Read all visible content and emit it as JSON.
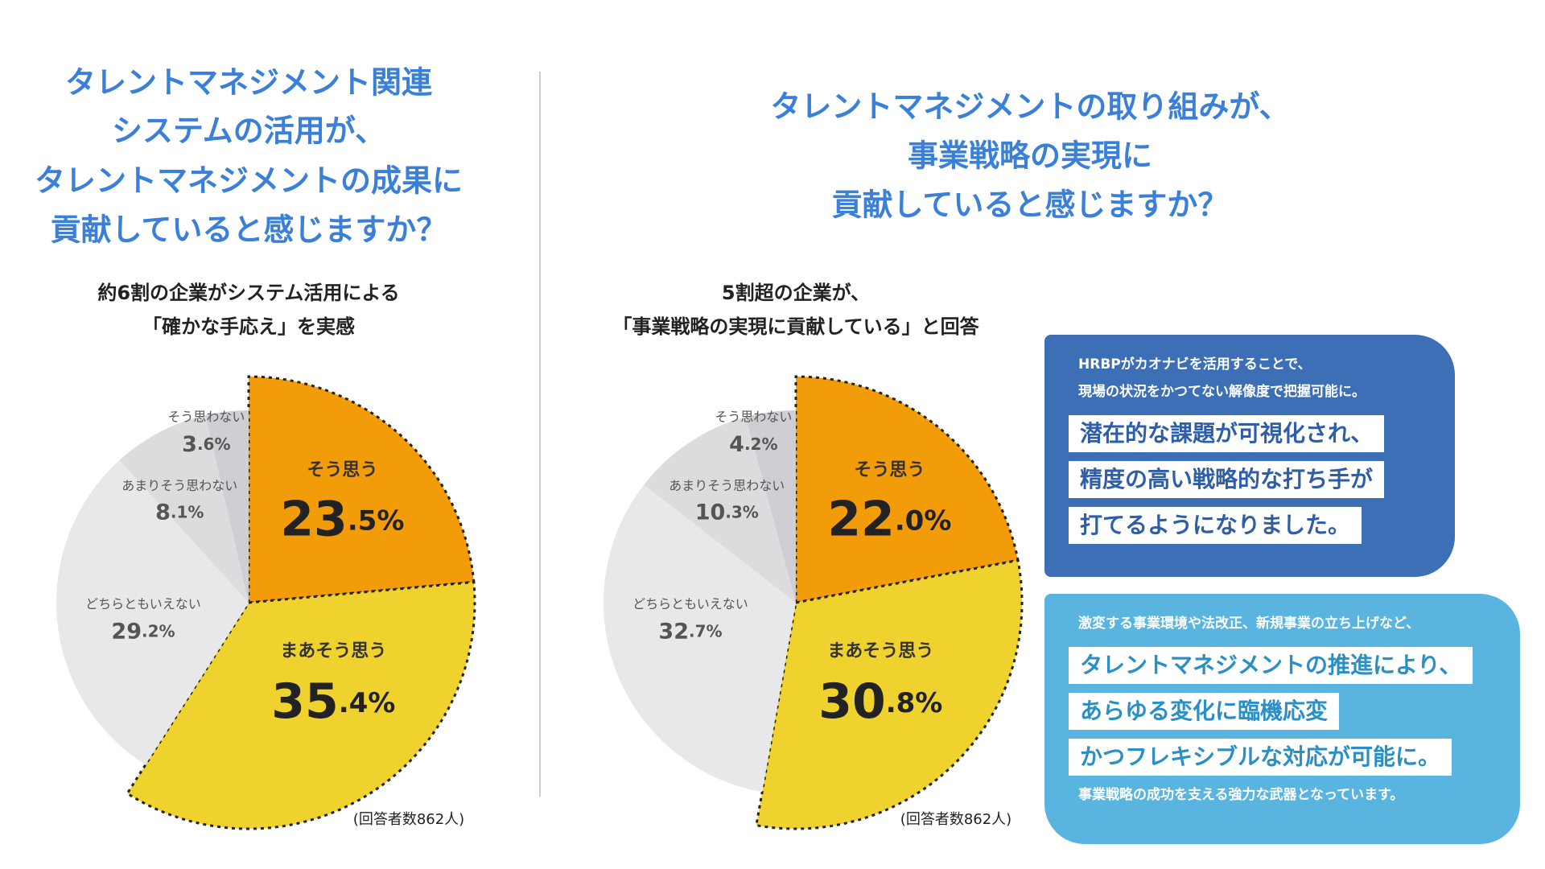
{
  "chart_data": [
    {
      "type": "pie",
      "title": [
        "タレントマネジメント関連",
        "システムの活用が、",
        "タレントマネジメントの成果に",
        "貢献していると感じますか？"
      ],
      "subtitle": [
        "約6割の企業がシステム活用による",
        "「確かな手応え」を実感"
      ],
      "note": "(回答者数862人)",
      "categories": [
        "そう思う",
        "まあそう思う",
        "どちらともいえない",
        "あまりそう思わない",
        "そう思わない"
      ],
      "values": [
        23.5,
        35.4,
        29.2,
        8.1,
        3.6
      ],
      "value_labels": [
        "23.5%",
        "35.4%",
        "29.2%",
        "8.1%",
        "3.6%"
      ],
      "colors": [
        "#f39c0a",
        "#f0d22e",
        "#e8e8ea",
        "#dcdcdf",
        "#cfcfd3"
      ]
    },
    {
      "type": "pie",
      "title": [
        "タレントマネジメントの取り組みが、",
        "事業戦略の実現に",
        "貢献していると感じますか？"
      ],
      "subtitle": [
        "5割超の企業が、",
        "「事業戦略の実現に貢献している」と回答"
      ],
      "note": "(回答者数862人)",
      "categories": [
        "そう思う",
        "まあそう思う",
        "どちらともいえない",
        "あまりそう思わない",
        "そう思わない"
      ],
      "values": [
        22.0,
        30.8,
        32.7,
        10.3,
        4.2
      ],
      "value_labels": [
        "22.0%",
        "30.8%",
        "32.7%",
        "10.3%",
        "4.2%"
      ],
      "colors": [
        "#f39c0a",
        "#f0d22e",
        "#e8e8ea",
        "#dcdcdf",
        "#cfcfd3"
      ]
    }
  ],
  "callouts": [
    {
      "lead": [
        "HRBPがカオナビを活用することで、",
        "現場の状況をかつてない解像度で把握可能に。"
      ],
      "highlights": [
        "潜在的な課題が可視化され、",
        "精度の高い戦略的な打ち手が",
        "打てるようになりました。"
      ]
    },
    {
      "lead": [
        "激変する事業環境や法改正、新規事業の立ち上げなど、"
      ],
      "highlights": [
        "タレントマネジメントの推進により、",
        "あらゆる変化に臨機応変",
        "かつフレキシブルな対応が可能に。"
      ],
      "tail": [
        "事業戦略の成功を支える強力な武器となっています。"
      ]
    }
  ]
}
